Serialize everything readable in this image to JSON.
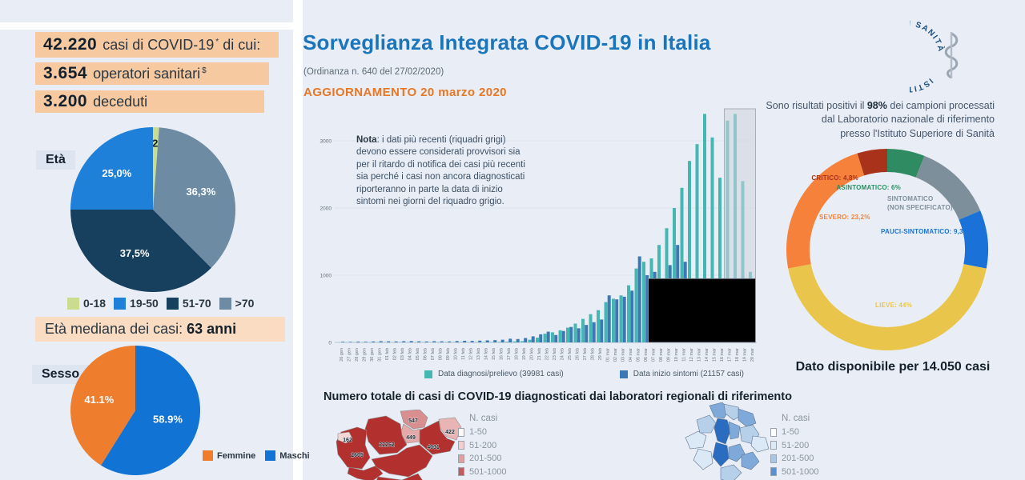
{
  "page": {
    "bg": "#e9eef6",
    "accent_blue": "#1b75bb",
    "accent_orange": "#e87725"
  },
  "left_panel": {
    "stats": [
      {
        "value": "42.220",
        "rest": "casi di COVID-19",
        "sup": "*",
        "tail": " di cui:"
      },
      {
        "value": "3.654",
        "rest": "operatori sanitari",
        "sup": "$",
        "tail": ""
      },
      {
        "value": "3.200",
        "rest": "deceduti",
        "sup": "",
        "tail": ""
      }
    ],
    "eta_label": "Età",
    "eta_median_prefix": "Età mediana dei casi: ",
    "eta_median_value": "63 anni",
    "sesso_label": "Sesso"
  },
  "header": {
    "title": "Sorveglianza Integrata COVID-19 in Italia",
    "subtitle": "(Ordinanza n. 640 del 27/02/2020)",
    "update": "AGGIORNAMENTO 20 marzo 2020"
  },
  "note": {
    "bold": "Nota",
    "text": ": i dati più recenti (riquadri grigi) devono essere considerati provvisori sia per il ritardo di notifica dei casi più recenti sia perché i casi non ancora diagnosticati riporteranno in parte la data di inizio sintomi nei giorni del riquadro grigio."
  },
  "right_panel": {
    "logo_text": "ISTITVTO SVPERIORE DI SANITÀ",
    "positivity_l1a": "Sono risultati positivi il ",
    "positivity_l1b": "98%",
    "positivity_l1c": " dei campioni processati",
    "positivity_l2": "dal Laboratorio nazionale di riferimento",
    "positivity_l3": "presso l'Istituto Superiore di Sanità",
    "donut_footer": "Dato disponibile per 14.050 casi"
  },
  "bottom": {
    "title": "Numero totale di casi di COVID-19 diagnosticati dai laboratori regionali di riferimento",
    "legend_title": "N. casi",
    "legend_classes": [
      "1-50",
      "51-200",
      "201-500",
      "501-1000"
    ],
    "left_map_colors": [
      "#fdf9f7",
      "#f3cfcf",
      "#df9f9f",
      "#c25b5b"
    ],
    "right_map_colors": [
      "#fbfdff",
      "#dce9f6",
      "#a8c6e6",
      "#5b8fd0"
    ]
  },
  "chart_data": [
    {
      "id": "age-pie",
      "type": "pie",
      "title": "Età",
      "slices": [
        {
          "label": "0-18",
          "value": 1.2,
          "display": "1,2%",
          "color": "#ccdc8f",
          "label_color": "#14202b",
          "label_r": 0.8
        },
        {
          "label": ">70",
          "value": 36.3,
          "display": "36,3%",
          "color": "#6d8ca3",
          "label_color": "#ffffff",
          "label_r": 0.62
        },
        {
          "label": "51-70",
          "value": 37.5,
          "display": "37,5%",
          "color": "#17405f",
          "label_color": "#ffffff",
          "label_r": 0.58
        },
        {
          "label": "19-50",
          "value": 25.0,
          "display": "25,0%",
          "color": "#1e80d8",
          "label_color": "#ffffff",
          "label_r": 0.62
        }
      ],
      "legend": [
        {
          "label": "0-18",
          "color": "#ccdc8f"
        },
        {
          "label": "19-50",
          "color": "#1e80d8"
        },
        {
          "label": "51-70",
          "color": "#17405f"
        },
        {
          "label": ">70",
          "color": "#6d8ca3"
        }
      ]
    },
    {
      "id": "sex-pie",
      "type": "pie",
      "title": "Sesso",
      "slices": [
        {
          "label": "Maschi",
          "value": 58.9,
          "display": "58.9%",
          "color": "#1173d4",
          "label_color": "#ffffff",
          "label_r": 0.52
        },
        {
          "label": "Femmine",
          "value": 41.1,
          "display": "41.1%",
          "color": "#ee7d2e",
          "label_color": "#ffffff",
          "label_r": 0.58
        }
      ],
      "legend": [
        {
          "label": "Femmine",
          "color": "#ee7d2e"
        },
        {
          "label": "Maschi",
          "color": "#1173d4"
        }
      ]
    },
    {
      "id": "epi-curve",
      "type": "bar",
      "title": "",
      "xlabel": "",
      "ylabel": "",
      "ylim": [
        0,
        3500
      ],
      "yticks": [
        0,
        1000,
        2000,
        3000
      ],
      "categories": [
        "26 gen",
        "27 gen",
        "28 gen",
        "29 gen",
        "30 gen",
        "31 gen",
        "01 feb",
        "02 feb",
        "03 feb",
        "04 feb",
        "05 feb",
        "06 feb",
        "07 feb",
        "08 feb",
        "09 feb",
        "10 feb",
        "11 feb",
        "12 feb",
        "13 feb",
        "14 feb",
        "15 feb",
        "16 feb",
        "17 feb",
        "18 feb",
        "19 feb",
        "20 feb",
        "21 feb",
        "22 feb",
        "23 feb",
        "24 feb",
        "25 feb",
        "26 feb",
        "27 feb",
        "28 feb",
        "29 feb",
        "01 mar",
        "02 mar",
        "03 mar",
        "04 mar",
        "05 mar",
        "06 mar",
        "07 mar",
        "08 mar",
        "09 mar",
        "10 mar",
        "11 mar",
        "12 mar",
        "13 mar",
        "14 mar",
        "15 mar",
        "16 mar",
        "17 mar",
        "18 mar",
        "19 mar",
        "20 mar"
      ],
      "series": [
        {
          "name": "Data diagnosi/prelievo (39981 casi)",
          "color": "#45b7b3",
          "values": [
            2,
            2,
            2,
            3,
            3,
            4,
            3,
            3,
            4,
            4,
            3,
            4,
            3,
            4,
            3,
            4,
            5,
            4,
            5,
            6,
            6,
            8,
            10,
            14,
            18,
            40,
            70,
            130,
            150,
            180,
            220,
            280,
            350,
            420,
            480,
            600,
            650,
            700,
            850,
            1100,
            1200,
            1250,
            1450,
            1700,
            2000,
            2300,
            2700,
            2950,
            3400,
            3050,
            2450,
            3300,
            3400,
            2400,
            1050
          ]
        },
        {
          "name": "Data inizio sintomi (21157 casi)",
          "color": "#3c78b4",
          "values": [
            10,
            8,
            12,
            10,
            14,
            18,
            16,
            14,
            18,
            20,
            16,
            14,
            18,
            16,
            14,
            20,
            24,
            22,
            26,
            30,
            34,
            40,
            55,
            50,
            65,
            90,
            120,
            160,
            110,
            170,
            230,
            210,
            260,
            300,
            340,
            700,
            640,
            680,
            770,
            1280,
            1000,
            1050,
            950,
            1150,
            1450,
            1200,
            950,
            800,
            730,
            650,
            560,
            400,
            300,
            150,
            100
          ]
        }
      ],
      "gray_boxes": [
        {
          "from": "17 mar",
          "to": "20 mar",
          "y_from": 0,
          "y_to": 3500
        },
        {
          "from": "07 mar",
          "to": "20 mar",
          "y_from": 0,
          "y_to": 950
        }
      ]
    },
    {
      "id": "clinical-donut",
      "type": "pie",
      "subtype": "donut",
      "slices": [
        {
          "label": "ASINTOMATICO",
          "display": "ASINTOMATICO: 6%",
          "value": 6,
          "color": "#2e8b62"
        },
        {
          "label": "SINTOMATICO (NON SPECIFICATO)",
          "display": "SINTOMATICO\n(NON SPECIFICATO): 12,7%",
          "value": 12.7,
          "color": "#7d8f9b"
        },
        {
          "label": "PAUCI-SINTOMATICO",
          "display": "PAUCI-SINTOMATICO: 9,3%",
          "value": 9.3,
          "color": "#1a72d8"
        },
        {
          "label": "LIEVE",
          "display": "LIEVE: 44%",
          "value": 44,
          "color": "#e9c64b"
        },
        {
          "label": "SEVERO",
          "display": "SEVERO: 23,2%",
          "value": 23.2,
          "color": "#f5813a"
        },
        {
          "label": "CRITICO",
          "display": "CRITICO: 4,8%",
          "value": 4.8,
          "color": "#a8321a"
        }
      ]
    },
    {
      "id": "regional-maps",
      "type": "choropleth",
      "left_map_region_values": [
        "162",
        "2605",
        "22262",
        "547",
        "449",
        "422",
        "4031",
        "5139"
      ]
    }
  ]
}
